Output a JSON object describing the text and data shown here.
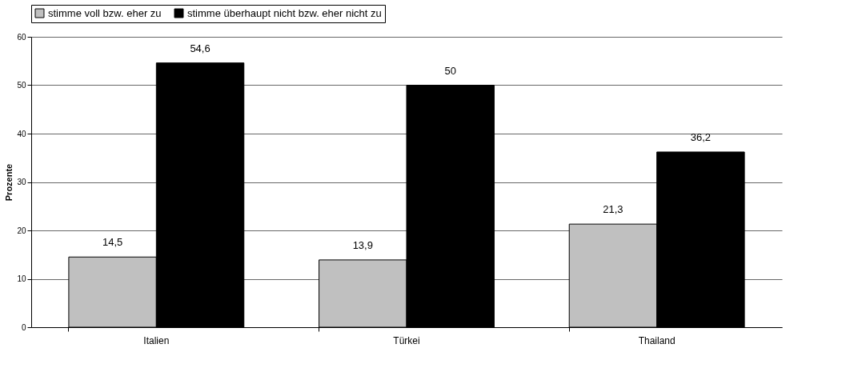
{
  "chart_data": {
    "type": "bar",
    "ylabel": "Prozente",
    "categories": [
      "Italien",
      "Türkei",
      "Thailand"
    ],
    "series": [
      {
        "name": "stimme voll bzw. eher zu",
        "color": "#c0c0c0",
        "values": [
          14.5,
          13.9,
          21.3
        ],
        "value_labels": [
          "14,5",
          "13,9",
          "21,3"
        ]
      },
      {
        "name": "stimme überhaupt nicht bzw. eher nicht zu",
        "color": "#000000",
        "values": [
          54.6,
          50,
          36.2
        ],
        "value_labels": [
          "54,6",
          "50",
          "36,2"
        ]
      }
    ],
    "ylim": [
      0,
      60
    ],
    "yticks": [
      0,
      10,
      20,
      30,
      40,
      50,
      60
    ],
    "grid": "y",
    "legend": "top"
  }
}
